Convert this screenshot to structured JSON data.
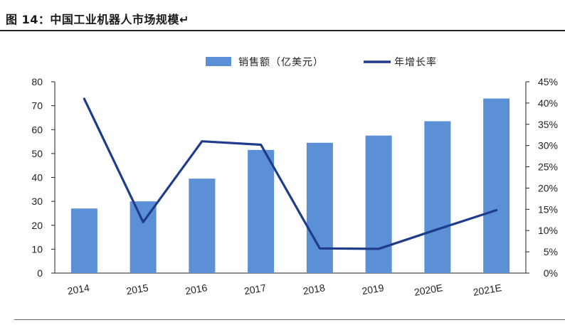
{
  "title": "图 14：中国工业机器人市场规模↵",
  "colors": {
    "bar": "#5b8fd6",
    "line": "#1f3c8c",
    "axis": "#222222"
  },
  "chart_data": {
    "type": "bar",
    "categories": [
      "2014",
      "2015",
      "2016",
      "2017",
      "2018",
      "2019",
      "2020E",
      "2021E"
    ],
    "series": [
      {
        "name": "销售额（亿美元）",
        "type": "bar",
        "axis": "left",
        "values": [
          27,
          30,
          39.5,
          51.5,
          54.5,
          57.5,
          63.5,
          73
        ]
      },
      {
        "name": "年增长率",
        "type": "line",
        "axis": "right",
        "values": [
          41,
          12,
          31,
          30.2,
          5.8,
          5.7,
          10.3,
          14.8
        ]
      }
    ],
    "ylim_left": [
      0,
      80
    ],
    "yticks_left": [
      "0",
      "10",
      "20",
      "30",
      "40",
      "50",
      "60",
      "70",
      "80"
    ],
    "ylim_right": [
      0,
      45
    ],
    "yticks_right": [
      "0%",
      "5%",
      "10%",
      "15%",
      "20%",
      "25%",
      "30%",
      "35%",
      "40%",
      "45%"
    ],
    "legend_position": "top-center",
    "grid": false
  }
}
